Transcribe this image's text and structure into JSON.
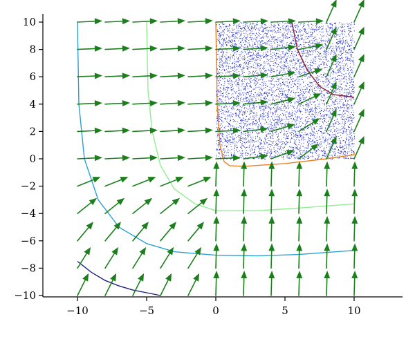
{
  "chart_data": {
    "type": "vector-field",
    "title": "",
    "xlabel": "",
    "ylabel": "",
    "xlim": [
      -12.5,
      13.5
    ],
    "ylim": [
      -10,
      10.5
    ],
    "x_ticks": [
      -10,
      -5,
      0,
      5,
      10
    ],
    "x_tick_labels": [
      "−10",
      "−5",
      "0",
      "5",
      "10"
    ],
    "y_ticks": [
      -10,
      -8,
      -6,
      -4,
      -2,
      0,
      2,
      4,
      6,
      8,
      10
    ],
    "y_tick_labels": [
      "−10",
      "−8",
      "−6",
      "−4",
      "−2",
      "0",
      "2",
      "4",
      "6",
      "8",
      "10"
    ],
    "grid": false,
    "vector_field": {
      "x": [
        -10,
        -8,
        -6,
        -4,
        -2,
        0,
        2,
        4,
        6,
        8,
        10
      ],
      "y": [
        -10,
        -8,
        -6,
        -4,
        -2,
        0,
        2,
        4,
        6,
        8,
        10
      ],
      "color": "#1b7f1b"
    },
    "scatter_region": {
      "x_range": [
        0,
        10
      ],
      "y_range": [
        0,
        10
      ],
      "color": "#1f2bd1",
      "approx_points": 6000
    },
    "curves": [
      {
        "color": "#2a9fd8",
        "points": [
          [
            -10,
            10
          ],
          [
            -9.9,
            4
          ],
          [
            -9.5,
            0
          ],
          [
            -8.5,
            -3
          ],
          [
            -7,
            -5
          ],
          [
            -5,
            -6.2
          ],
          [
            -3,
            -6.8
          ],
          [
            0,
            -7.05
          ],
          [
            3,
            -7.1
          ],
          [
            6,
            -7.0
          ],
          [
            10,
            -6.7
          ]
        ]
      },
      {
        "color": "#90ee90",
        "points": [
          [
            -5,
            10
          ],
          [
            -4.9,
            5
          ],
          [
            -4.6,
            2
          ],
          [
            -4,
            -0.5
          ],
          [
            -3,
            -2.2
          ],
          [
            -1.5,
            -3.3
          ],
          [
            0,
            -3.8
          ],
          [
            3,
            -3.8
          ],
          [
            6,
            -3.6
          ],
          [
            10,
            -3.3
          ]
        ]
      },
      {
        "color": "#f07f20",
        "points": [
          [
            0,
            10
          ],
          [
            0.1,
            4
          ],
          [
            0.3,
            1
          ],
          [
            0.6,
            -0.2
          ],
          [
            1,
            -0.5
          ],
          [
            2,
            -0.55
          ],
          [
            5,
            -0.35
          ],
          [
            8,
            0
          ],
          [
            10,
            0.3
          ],
          [
            10,
            0.5
          ]
        ]
      },
      {
        "color": "#8b1a2b",
        "points": [
          [
            5.5,
            10
          ],
          [
            5.9,
            8
          ],
          [
            6.6,
            6.5
          ],
          [
            7.5,
            5.3
          ],
          [
            8.5,
            4.7
          ],
          [
            10,
            4.5
          ]
        ]
      },
      {
        "color": "#1a1f7a",
        "points": [
          [
            -10,
            -7.5
          ],
          [
            -9,
            -8.3
          ],
          [
            -8,
            -8.9
          ],
          [
            -7,
            -9.3
          ],
          [
            -6,
            -9.6
          ],
          [
            -5,
            -9.8
          ],
          [
            -4,
            -10
          ]
        ]
      }
    ]
  }
}
